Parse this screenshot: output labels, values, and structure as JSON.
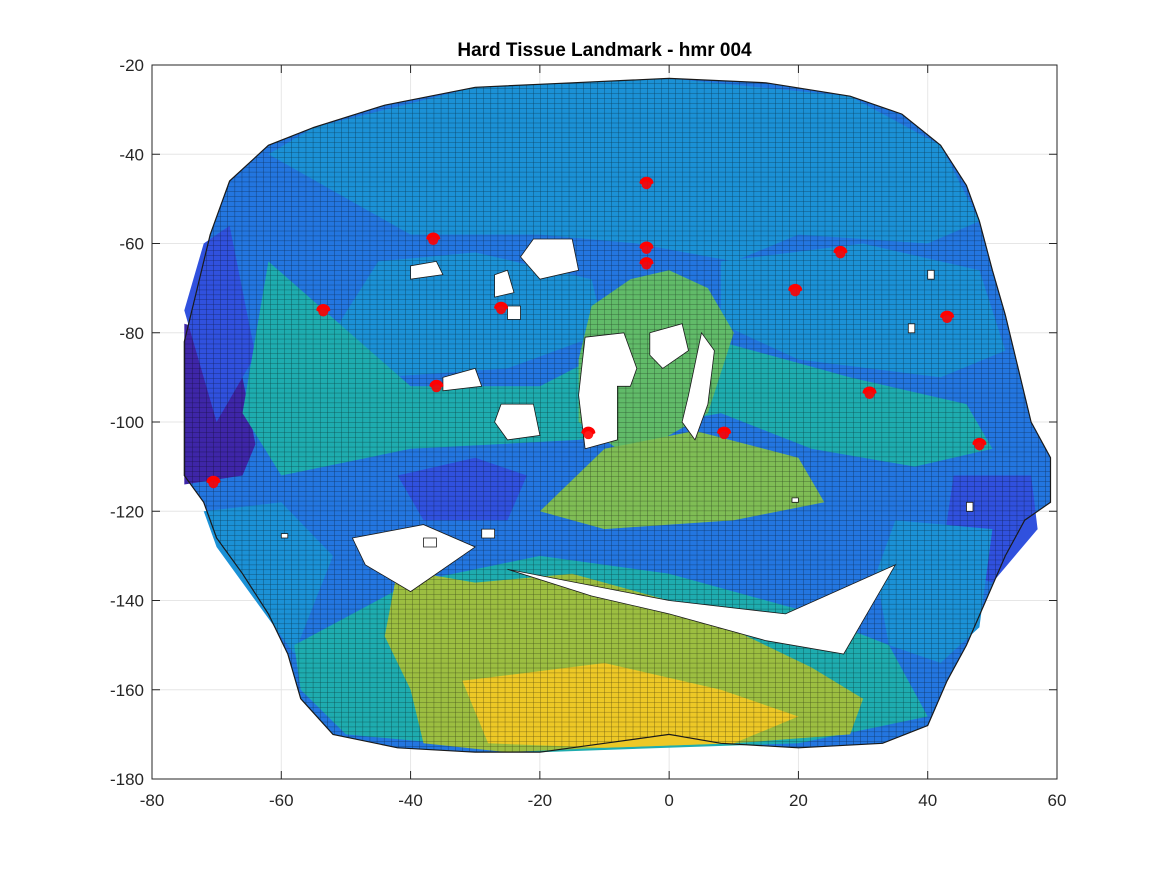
{
  "chart_data": {
    "type": "heatmap",
    "title": "Hard Tissue Landmark - hmr 004",
    "xlabel": "",
    "ylabel": "",
    "xlim": [
      -80,
      60
    ],
    "ylim": [
      -180,
      -20
    ],
    "x_ticks": [
      -80,
      -60,
      -40,
      -20,
      0,
      20,
      40,
      60
    ],
    "y_ticks": [
      -20,
      -40,
      -60,
      -80,
      -100,
      -120,
      -140,
      -160,
      -180
    ],
    "grid": true,
    "colormap": "parula",
    "colormap_stops": [
      "#3e26a8",
      "#2d59e8",
      "#1b8ed9",
      "#19aab7",
      "#3db981",
      "#a7bf3a",
      "#e3b22a",
      "#f9e321"
    ],
    "grid_cell_size": 1.1,
    "surface_outline": [
      [
        -55,
        -34
      ],
      [
        -44,
        -29
      ],
      [
        -30,
        -25
      ],
      [
        -15,
        -24
      ],
      [
        0,
        -23
      ],
      [
        15,
        -24
      ],
      [
        28,
        -27
      ],
      [
        36,
        -31
      ],
      [
        42,
        -38
      ],
      [
        46,
        -47
      ],
      [
        48,
        -55
      ],
      [
        50,
        -66
      ],
      [
        52,
        -76
      ],
      [
        54,
        -88
      ],
      [
        56,
        -100
      ],
      [
        59,
        -108
      ],
      [
        59,
        -118
      ],
      [
        55,
        -122
      ],
      [
        52,
        -130
      ],
      [
        49,
        -140
      ],
      [
        46,
        -150
      ],
      [
        43,
        -158
      ],
      [
        40,
        -168
      ],
      [
        33,
        -172
      ],
      [
        20,
        -173
      ],
      [
        8,
        -172
      ],
      [
        0,
        -170
      ],
      [
        -10,
        -172
      ],
      [
        -20,
        -174
      ],
      [
        -30,
        -174
      ],
      [
        -42,
        -173
      ],
      [
        -52,
        -170
      ],
      [
        -57,
        -162
      ],
      [
        -59,
        -152
      ],
      [
        -62,
        -143
      ],
      [
        -66,
        -134
      ],
      [
        -70,
        -126
      ],
      [
        -72,
        -118
      ],
      [
        -75,
        -112
      ],
      [
        -75,
        -100
      ],
      [
        -75,
        -82
      ],
      [
        -73,
        -70
      ],
      [
        -71,
        -58
      ],
      [
        -68,
        -46
      ],
      [
        -62,
        -38
      ]
    ],
    "surface_height_zones": [
      {
        "level": 0.0,
        "polygon": [
          [
            -75,
            -78
          ],
          [
            -70,
            -80
          ],
          [
            -66,
            -90
          ],
          [
            -64,
            -105
          ],
          [
            -66,
            -112
          ],
          [
            -75,
            -114
          ]
        ]
      },
      {
        "level": 0.12,
        "polygon": [
          [
            -68,
            -56
          ],
          [
            -64,
            -85
          ],
          [
            -70,
            -100
          ],
          [
            -75,
            -75
          ],
          [
            -72,
            -60
          ]
        ]
      },
      {
        "level": 0.12,
        "polygon": [
          [
            -42,
            -112
          ],
          [
            -30,
            -108
          ],
          [
            -22,
            -112
          ],
          [
            -25,
            -122
          ],
          [
            -38,
            -122
          ]
        ]
      },
      {
        "level": 0.12,
        "polygon": [
          [
            44,
            -112
          ],
          [
            56,
            -112
          ],
          [
            57,
            -124
          ],
          [
            50,
            -136
          ],
          [
            42,
            -132
          ]
        ]
      },
      {
        "level": 0.3,
        "polygon": [
          [
            -55,
            -34
          ],
          [
            -30,
            -25
          ],
          [
            0,
            -23
          ],
          [
            28,
            -27
          ],
          [
            42,
            -38
          ],
          [
            48,
            -55
          ],
          [
            40,
            -60
          ],
          [
            20,
            -58
          ],
          [
            10,
            -64
          ],
          [
            -5,
            -60
          ],
          [
            -20,
            -58
          ],
          [
            -40,
            -58
          ],
          [
            -62,
            -40
          ]
        ]
      },
      {
        "level": 0.3,
        "polygon": [
          [
            -45,
            -64
          ],
          [
            -30,
            -62
          ],
          [
            -12,
            -68
          ],
          [
            -10,
            -80
          ],
          [
            -25,
            -88
          ],
          [
            -45,
            -90
          ],
          [
            -52,
            -80
          ]
        ]
      },
      {
        "level": 0.3,
        "polygon": [
          [
            8,
            -64
          ],
          [
            30,
            -60
          ],
          [
            48,
            -66
          ],
          [
            52,
            -84
          ],
          [
            42,
            -90
          ],
          [
            20,
            -86
          ],
          [
            8,
            -78
          ]
        ]
      },
      {
        "level": 0.3,
        "polygon": [
          [
            -72,
            -120
          ],
          [
            -60,
            -118
          ],
          [
            -52,
            -130
          ],
          [
            -58,
            -152
          ],
          [
            -64,
            -140
          ],
          [
            -70,
            -128
          ]
        ]
      },
      {
        "level": 0.3,
        "polygon": [
          [
            35,
            -122
          ],
          [
            50,
            -124
          ],
          [
            48,
            -146
          ],
          [
            42,
            -154
          ],
          [
            34,
            -150
          ],
          [
            32,
            -134
          ]
        ]
      },
      {
        "level": 0.45,
        "polygon": [
          [
            -62,
            -64
          ],
          [
            -40,
            -92
          ],
          [
            -20,
            -92
          ],
          [
            -12,
            -86
          ],
          [
            -2,
            -70
          ],
          [
            8,
            -82
          ],
          [
            28,
            -90
          ],
          [
            46,
            -96
          ],
          [
            50,
            -106
          ],
          [
            38,
            -110
          ],
          [
            22,
            -106
          ],
          [
            8,
            -98
          ],
          [
            -14,
            -104
          ],
          [
            -40,
            -106
          ],
          [
            -60,
            -112
          ],
          [
            -66,
            -98
          ]
        ]
      },
      {
        "level": 0.45,
        "polygon": [
          [
            -58,
            -150
          ],
          [
            -40,
            -136
          ],
          [
            -20,
            -130
          ],
          [
            0,
            -134
          ],
          [
            20,
            -142
          ],
          [
            34,
            -150
          ],
          [
            40,
            -166
          ],
          [
            20,
            -172
          ],
          [
            -20,
            -174
          ],
          [
            -50,
            -170
          ],
          [
            -57,
            -160
          ]
        ]
      },
      {
        "level": 0.62,
        "polygon": [
          [
            -12,
            -74
          ],
          [
            -6,
            -68
          ],
          [
            0,
            -66
          ],
          [
            6,
            -70
          ],
          [
            10,
            -80
          ],
          [
            6,
            -98
          ],
          [
            -6,
            -108
          ],
          [
            -14,
            -100
          ],
          [
            -14,
            -86
          ]
        ]
      },
      {
        "level": 0.66,
        "polygon": [
          [
            -10,
            -106
          ],
          [
            4,
            -102
          ],
          [
            20,
            -108
          ],
          [
            24,
            -118
          ],
          [
            10,
            -122
          ],
          [
            -10,
            -124
          ],
          [
            -20,
            -120
          ]
        ]
      },
      {
        "level": 0.7,
        "polygon": [
          [
            -42,
            -133
          ],
          [
            -30,
            -136
          ],
          [
            -15,
            -134
          ],
          [
            0,
            -140
          ],
          [
            12,
            -148
          ],
          [
            22,
            -155
          ],
          [
            30,
            -162
          ],
          [
            28,
            -170
          ],
          [
            10,
            -172
          ],
          [
            -10,
            -173
          ],
          [
            -25,
            -174
          ],
          [
            -38,
            -172
          ],
          [
            -40,
            -160
          ],
          [
            -44,
            -148
          ]
        ]
      },
      {
        "level": 0.92,
        "polygon": [
          [
            -32,
            -158
          ],
          [
            -10,
            -154
          ],
          [
            8,
            -160
          ],
          [
            20,
            -166
          ],
          [
            10,
            -172
          ],
          [
            -10,
            -173
          ],
          [
            -28,
            -172
          ]
        ]
      }
    ],
    "holes": [
      [
        [
          -40,
          -65
        ],
        [
          -36,
          -64
        ],
        [
          -35,
          -67
        ],
        [
          -40,
          -68
        ]
      ],
      [
        [
          -21,
          -59
        ],
        [
          -15,
          -59
        ],
        [
          -14,
          -66
        ],
        [
          -20,
          -68
        ],
        [
          -23,
          -63
        ]
      ],
      [
        [
          -27,
          -67
        ],
        [
          -25,
          -66
        ],
        [
          -24,
          -71
        ],
        [
          -27,
          -72
        ]
      ],
      [
        [
          -25,
          -74
        ],
        [
          -23,
          -74
        ],
        [
          -23,
          -77
        ],
        [
          -25,
          -77
        ]
      ],
      [
        [
          -35,
          -90
        ],
        [
          -30,
          -88
        ],
        [
          -29,
          -92
        ],
        [
          -35,
          -93
        ]
      ],
      [
        [
          -26,
          -96
        ],
        [
          -21,
          -96
        ],
        [
          -20,
          -103
        ],
        [
          -25,
          -104
        ],
        [
          -27,
          -100
        ]
      ],
      [
        [
          -13,
          -81
        ],
        [
          -7,
          -80
        ],
        [
          -5,
          -88
        ],
        [
          -6,
          -92
        ],
        [
          -8,
          -92
        ],
        [
          -8,
          -104
        ],
        [
          -13,
          -106
        ],
        [
          -14,
          -94
        ]
      ],
      [
        [
          -3,
          -80
        ],
        [
          2,
          -78
        ],
        [
          3,
          -84
        ],
        [
          -1,
          -88
        ],
        [
          -3,
          -85
        ]
      ],
      [
        [
          5,
          -80
        ],
        [
          7,
          -84
        ],
        [
          6,
          -96
        ],
        [
          4,
          -104
        ],
        [
          2,
          -100
        ],
        [
          3,
          -94
        ]
      ],
      [
        [
          -49,
          -126
        ],
        [
          -38,
          -123
        ],
        [
          -30,
          -128
        ],
        [
          -40,
          -138
        ],
        [
          -47,
          -132
        ]
      ],
      [
        [
          -25,
          -133
        ],
        [
          0,
          -140
        ],
        [
          18,
          -143
        ],
        [
          35,
          -132
        ],
        [
          27,
          -152
        ],
        [
          15,
          -149
        ],
        [
          0,
          -143
        ],
        [
          -12,
          -139
        ]
      ],
      [
        [
          -38,
          -126
        ],
        [
          -36,
          -126
        ],
        [
          -36,
          -128
        ],
        [
          -38,
          -128
        ]
      ],
      [
        [
          -29,
          -124
        ],
        [
          -27,
          -124
        ],
        [
          -27,
          -126
        ],
        [
          -29,
          -126
        ]
      ],
      [
        [
          40,
          -66
        ],
        [
          41,
          -66
        ],
        [
          41,
          -68
        ],
        [
          40,
          -68
        ]
      ],
      [
        [
          37,
          -78
        ],
        [
          38,
          -78
        ],
        [
          38,
          -80
        ],
        [
          37,
          -80
        ]
      ],
      [
        [
          46,
          -118
        ],
        [
          47,
          -118
        ],
        [
          47,
          -120
        ],
        [
          46,
          -120
        ]
      ],
      [
        [
          19,
          -117
        ],
        [
          20,
          -117
        ],
        [
          20,
          -118
        ],
        [
          19,
          -118
        ]
      ],
      [
        [
          -60,
          -125
        ],
        [
          -59,
          -125
        ],
        [
          -59,
          -126
        ],
        [
          -60,
          -126
        ]
      ]
    ],
    "landmarks": [
      {
        "x": -3.5,
        "y": -46.5
      },
      {
        "x": -36.5,
        "y": -59
      },
      {
        "x": -3.5,
        "y": -61
      },
      {
        "x": -3.5,
        "y": -64.5
      },
      {
        "x": 26.5,
        "y": -62
      },
      {
        "x": 19.5,
        "y": -70.5
      },
      {
        "x": -53.5,
        "y": -75
      },
      {
        "x": -26,
        "y": -74.5
      },
      {
        "x": 43,
        "y": -76.5
      },
      {
        "x": -36,
        "y": -92
      },
      {
        "x": 31,
        "y": -93.5
      },
      {
        "x": -12.5,
        "y": -102.5
      },
      {
        "x": 8.5,
        "y": -102.5
      },
      {
        "x": 48,
        "y": -105
      },
      {
        "x": -70.5,
        "y": -113.5
      }
    ],
    "landmark_color": "#ff0000"
  }
}
